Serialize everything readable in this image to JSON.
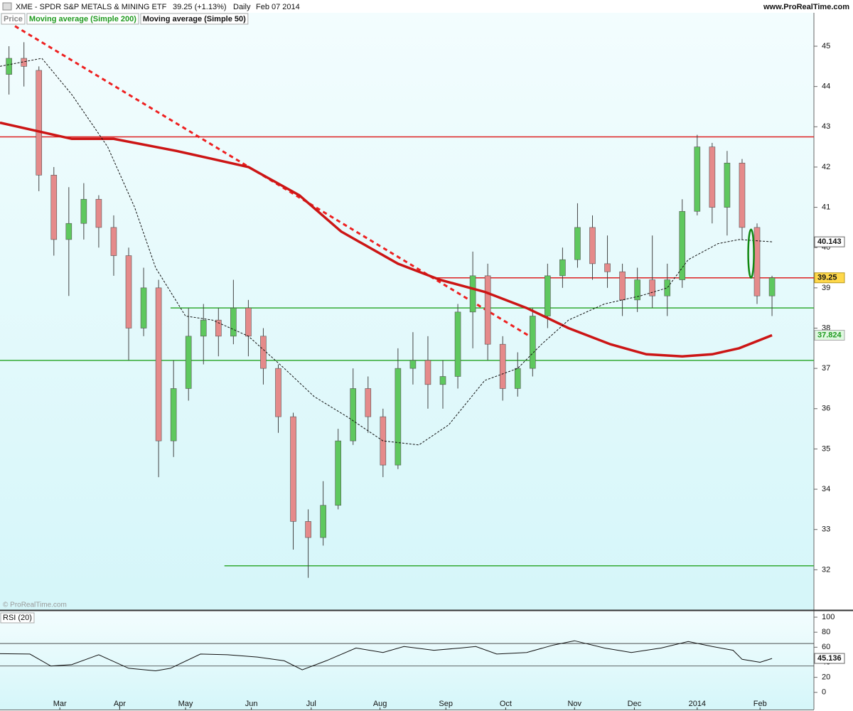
{
  "chart_data": [
    {
      "type": "candlestick",
      "title": "XME - SPDR S&P METALS & MINING ETF",
      "quote": "39.25 (+1.13%)",
      "period": "Daily",
      "date": "Feb 07 2014",
      "source": "www.ProRealTime.com",
      "watermark": "© ProRealTime.com",
      "xlim": [
        0,
        272
      ],
      "ylim": [
        31.0,
        45.83
      ],
      "yticks": [
        32,
        33,
        34,
        35,
        36,
        37,
        38,
        39,
        40,
        41,
        42,
        43,
        44,
        45
      ],
      "candles": {
        "name": "Price",
        "up_color": "#5ec85e",
        "down_color": "#e58a8a",
        "x": [
          3,
          8,
          13,
          18,
          23,
          28,
          33,
          38,
          43,
          48,
          53,
          58,
          63,
          68,
          73,
          78,
          83,
          88,
          93,
          98,
          103,
          108,
          113,
          118,
          123,
          128,
          133,
          138,
          143,
          148,
          153,
          158,
          163,
          168,
          173,
          178,
          183,
          188,
          193,
          198,
          203,
          208,
          213,
          218,
          223,
          228,
          233,
          238,
          243,
          248,
          253,
          258
        ],
        "open": [
          44.3,
          44.7,
          44.4,
          41.8,
          40.2,
          40.6,
          41.2,
          40.5,
          39.8,
          38,
          39,
          35.2,
          36.5,
          37.8,
          38.2,
          37.8,
          38.5,
          37.8,
          37,
          35.8,
          33.2,
          32.8,
          33.6,
          35.2,
          36.5,
          35.8,
          34.6,
          37,
          37.2,
          36.6,
          36.8,
          38.4,
          39.3,
          37.6,
          36.5,
          37,
          38.3,
          39.3,
          39.7,
          40.5,
          39.6,
          39.4,
          38.7,
          39.2,
          38.8,
          39.2,
          40.9,
          42.5,
          41,
          42.1,
          40.5,
          38.8
        ],
        "high": [
          45,
          45.1,
          44.5,
          42,
          41.5,
          41.6,
          41.3,
          40.8,
          40,
          39.5,
          39.2,
          37.2,
          38.5,
          38.6,
          38.5,
          39.2,
          38.7,
          38,
          37.1,
          35.9,
          33.5,
          34.2,
          35.5,
          37,
          36.8,
          36,
          37.5,
          37.9,
          37.8,
          37.2,
          38.6,
          39.9,
          39.6,
          37.8,
          37.4,
          38.5,
          39.6,
          40,
          41.1,
          40.8,
          40.3,
          39.6,
          39.5,
          40.3,
          39.6,
          41.2,
          42.8,
          42.6,
          42.4,
          42.2,
          40.6,
          39.3
        ],
        "low": [
          43.8,
          44,
          41.4,
          39.8,
          38.8,
          40.2,
          40,
          39.3,
          37.2,
          37.8,
          34.3,
          34.8,
          36.2,
          37.1,
          37.3,
          37.6,
          37.3,
          36.6,
          35.4,
          32.5,
          31.8,
          32.6,
          33.5,
          35.1,
          35.4,
          34.3,
          34.5,
          36.6,
          36,
          36,
          36.5,
          37.5,
          37.2,
          36.2,
          36.3,
          36.8,
          38,
          39,
          39.5,
          39.2,
          39,
          38.3,
          38.4,
          38.5,
          38.3,
          39,
          40.8,
          40.6,
          40.3,
          40.2,
          38.6,
          38.3
        ],
        "close": [
          44.7,
          44.5,
          41.8,
          40.2,
          40.6,
          41.2,
          40.5,
          39.8,
          38,
          39,
          35.2,
          36.5,
          37.8,
          38.2,
          37.8,
          38.5,
          37.8,
          37,
          35.8,
          33.2,
          32.8,
          33.6,
          35.2,
          36.5,
          35.8,
          34.6,
          37,
          37.2,
          36.6,
          36.8,
          38.4,
          39.3,
          37.6,
          36.5,
          37,
          38.3,
          39.3,
          39.7,
          40.5,
          39.6,
          39.4,
          38.7,
          39.2,
          38.8,
          39.2,
          40.9,
          42.5,
          41,
          42.1,
          40.5,
          38.8,
          39.25
        ]
      },
      "series": [
        {
          "name": "Moving average (Simple 200)",
          "color": "#cc1515",
          "label_color": "#1f9a1f",
          "x": [
            0,
            24,
            38,
            59,
            71,
            83,
            100,
            114,
            133,
            147,
            162,
            176,
            190,
            204,
            216,
            228,
            238,
            247,
            258
          ],
          "values": [
            43.1,
            42.7,
            42.7,
            42.4,
            42.2,
            42,
            41.3,
            40.4,
            39.6,
            39.2,
            38.9,
            38.5,
            38,
            37.6,
            37.35,
            37.3,
            37.35,
            37.5,
            37.824
          ]
        },
        {
          "name": "Moving average (Simple 50)",
          "color": "#111111",
          "label_color": "#111111",
          "x": [
            0,
            14,
            24,
            36,
            45,
            52,
            62,
            71,
            83,
            95,
            105,
            116,
            128,
            140,
            150,
            162,
            173,
            181,
            190,
            202,
            214,
            223,
            230,
            240,
            247,
            258
          ],
          "values": [
            44.5,
            44.7,
            43.8,
            42.5,
            41,
            39.5,
            38.3,
            38.2,
            37.8,
            37,
            36.3,
            35.8,
            35.2,
            35.1,
            35.6,
            36.7,
            37,
            37.6,
            38.2,
            38.6,
            38.8,
            39,
            39.7,
            40.1,
            40.2,
            40.143
          ]
        }
      ],
      "hlines": [
        {
          "value": 42.75,
          "color": "#dd2020",
          "start": 0
        },
        {
          "value": 39.25,
          "color": "#dd2020",
          "start": 145
        },
        {
          "value": 38.5,
          "color": "#33aa33",
          "start": 57
        },
        {
          "value": 37.2,
          "color": "#33aa33",
          "start": 0
        },
        {
          "value": 32.1,
          "color": "#33aa33",
          "start": 75
        }
      ],
      "trendline": {
        "x": [
          5,
          177
        ],
        "y": [
          45.5,
          37.8
        ],
        "color": "#ee2020"
      },
      "ellipse": {
        "x": 251,
        "y": [
          40.45,
          39.25
        ],
        "color": "#118811"
      }
    },
    {
      "type": "line",
      "title": "RSI (20)",
      "xlim": [
        0,
        272
      ],
      "ylim": [
        -22.9,
        107.6
      ],
      "yticks": [
        0,
        20,
        40,
        60,
        80,
        100
      ],
      "levels": [
        35,
        65
      ],
      "xticks": [
        {
          "value": 20,
          "label": "Mar"
        },
        {
          "value": 40,
          "label": "Apr"
        },
        {
          "value": 62,
          "label": "May"
        },
        {
          "value": 84,
          "label": "Jun"
        },
        {
          "value": 104,
          "label": "Jul"
        },
        {
          "value": 127,
          "label": "Aug"
        },
        {
          "value": 149,
          "label": "Sep"
        },
        {
          "value": 169,
          "label": "Oct"
        },
        {
          "value": 192,
          "label": "Nov"
        },
        {
          "value": 212,
          "label": "Dec"
        },
        {
          "value": 233,
          "label": "2014"
        },
        {
          "value": 254,
          "label": "Feb"
        }
      ],
      "series": [
        {
          "color": "#111111",
          "x": [
            0,
            10,
            17,
            24,
            33,
            43,
            52,
            57,
            67,
            76,
            86,
            95,
            101,
            109,
            119,
            128,
            135,
            145,
            154,
            159,
            166,
            176,
            185,
            192,
            202,
            211,
            221,
            230,
            238,
            245,
            248,
            254,
            258
          ],
          "values": [
            51.4,
            51,
            35,
            37,
            50,
            32,
            28.6,
            32,
            51,
            50,
            47,
            42,
            30,
            42,
            59,
            53,
            61,
            56,
            59,
            61,
            51,
            53,
            63,
            68.6,
            59,
            53,
            59,
            67.6,
            61,
            56,
            44,
            40,
            45.136
          ]
        }
      ]
    }
  ]
}
